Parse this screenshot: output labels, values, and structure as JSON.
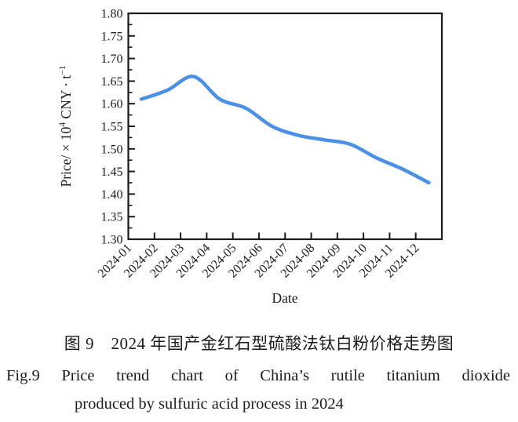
{
  "figure": {
    "caption_zh": "图 9　2024 年国产金红石型硫酸法钛白粉价格走势图",
    "caption_en_line1": "Fig.9  Price trend chart of China’s rutile titanium dioxide",
    "caption_en_line2": "produced by sulfuric acid process in 2024"
  },
  "chart_data": {
    "type": "line",
    "title": "",
    "xlabel": "Date",
    "ylabel": "Price/ × 10^4 CNY · t^−1",
    "ylabel_parts": {
      "base": "Price/ × 10",
      "sup1": "4",
      "mid": " CNY · t",
      "sup2": "−1"
    },
    "categories": [
      "2024-01",
      "2024-02",
      "2024-03",
      "2024-04",
      "2024-05",
      "2024-06",
      "2024-07",
      "2024-08",
      "2024-09",
      "2024-10",
      "2024-11",
      "2024-12"
    ],
    "series": [
      {
        "name": "price",
        "values": [
          1.61,
          1.63,
          1.66,
          1.61,
          1.59,
          1.55,
          1.53,
          1.52,
          1.51,
          1.48,
          1.455,
          1.425
        ]
      }
    ],
    "ylim": [
      1.3,
      1.8
    ],
    "y_tick_step": 0.05,
    "y_minor_step": 0.025,
    "grid": false,
    "legend": null,
    "line_color": "#4a90e8",
    "axis_color": "#1c1c1c"
  }
}
